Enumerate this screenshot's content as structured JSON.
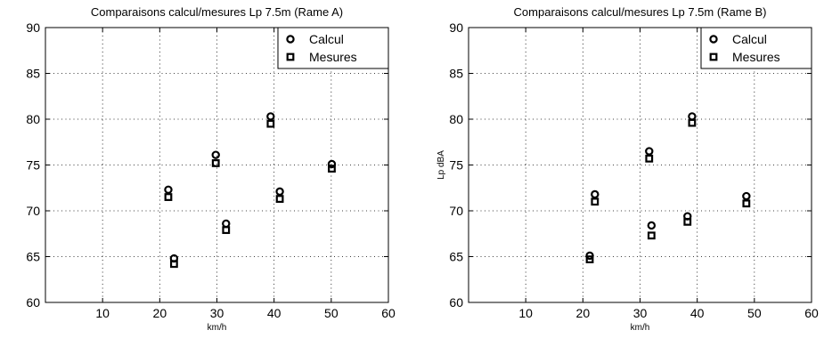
{
  "chart_data": [
    {
      "type": "scatter",
      "title": "Comparaisons calcul/mesures Lp 7.5m (Rame A)",
      "xlabel": "km/h",
      "ylabel": "",
      "xlim": [
        0,
        60
      ],
      "ylim": [
        60,
        90
      ],
      "xticks": [
        10,
        20,
        30,
        40,
        50,
        60
      ],
      "yticks": [
        60,
        65,
        70,
        75,
        80,
        85,
        90
      ],
      "grid": true,
      "legend_position": "top-right",
      "series": [
        {
          "name": "Calcul",
          "marker": "circle",
          "x": [
            21.5,
            22.5,
            29.8,
            31.6,
            39.4,
            41.0,
            50.1
          ],
          "y": [
            72.3,
            64.8,
            76.1,
            68.6,
            80.3,
            72.1,
            75.1
          ]
        },
        {
          "name": "Mesures",
          "marker": "square",
          "x": [
            21.5,
            22.5,
            29.8,
            31.6,
            39.4,
            41.0,
            50.1
          ],
          "y": [
            71.5,
            64.2,
            75.2,
            67.9,
            79.5,
            71.3,
            74.6
          ]
        }
      ]
    },
    {
      "type": "scatter",
      "title": "Comparaisons calcul/mesures Lp 7.5m (Rame B)",
      "xlabel": "km/h",
      "ylabel": "Lp dBA",
      "xlim": [
        0,
        60
      ],
      "ylim": [
        60,
        90
      ],
      "xticks": [
        10,
        20,
        30,
        40,
        50,
        60
      ],
      "yticks": [
        60,
        65,
        70,
        75,
        80,
        85,
        90
      ],
      "grid": true,
      "legend_position": "top-right",
      "series": [
        {
          "name": "Calcul",
          "marker": "circle",
          "x": [
            21.2,
            22.1,
            31.6,
            32.0,
            38.3,
            39.1,
            48.6
          ],
          "y": [
            65.1,
            71.8,
            76.5,
            68.4,
            69.4,
            80.3,
            71.6
          ]
        },
        {
          "name": "Mesures",
          "marker": "square",
          "x": [
            21.2,
            22.1,
            31.6,
            32.0,
            38.3,
            39.1,
            48.6
          ],
          "y": [
            64.7,
            71.0,
            75.7,
            67.3,
            68.8,
            79.6,
            70.8
          ]
        }
      ]
    }
  ],
  "colors": {
    "marker": "#000000",
    "grid": "#000000",
    "axes": "#000000",
    "background": "#ffffff"
  }
}
